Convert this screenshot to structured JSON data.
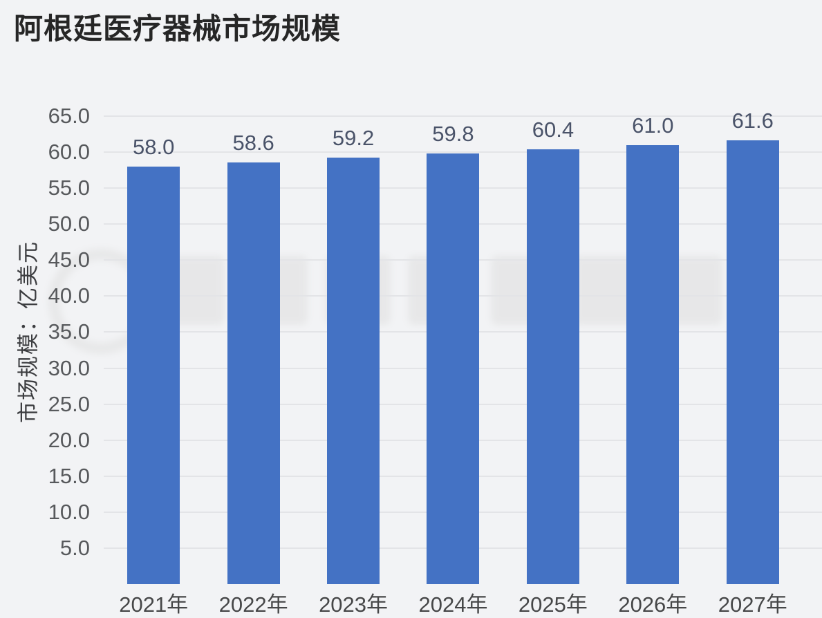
{
  "page": {
    "title": "阿根廷医疗器械市场规模"
  },
  "chart_data": {
    "type": "bar",
    "title": "阿根廷医疗器械市场规模",
    "categories": [
      "2021年",
      "2022年",
      "2023年",
      "2024年",
      "2025年",
      "2026年",
      "2027年"
    ],
    "values": [
      58.0,
      58.6,
      59.2,
      59.8,
      60.4,
      61.0,
      61.6
    ],
    "value_labels": [
      "58.0",
      "58.6",
      "59.2",
      "59.8",
      "60.4",
      "61.0",
      "61.6"
    ],
    "xlabel": "",
    "ylabel": "市场规模：亿美元",
    "ylim": [
      0,
      65
    ],
    "yticks": [
      5.0,
      10.0,
      15.0,
      20.0,
      25.0,
      30.0,
      35.0,
      40.0,
      45.0,
      50.0,
      55.0,
      60.0,
      65.0
    ],
    "ytick_labels": [
      "5.0",
      "10.0",
      "15.0",
      "20.0",
      "25.0",
      "30.0",
      "35.0",
      "40.0",
      "45.0",
      "50.0",
      "55.0",
      "60.0",
      "65.0"
    ],
    "grid": true,
    "legend": false,
    "bar_color": "#4472c4",
    "value_label_color": "#4a5369",
    "background_color": "#f2f3f5",
    "gridline_color": "#e3e4e7"
  }
}
